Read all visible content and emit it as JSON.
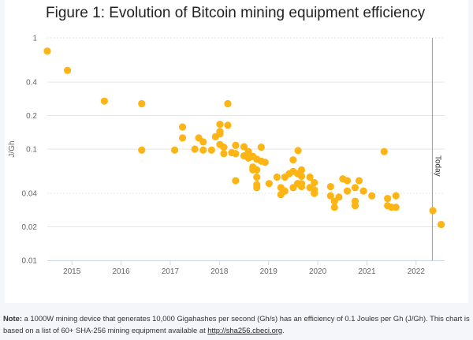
{
  "title": "Figure 1: Evolution of Bitcoin mining equipment efficiency",
  "note": {
    "label": "Note:",
    "text": " a 1000W mining device that generates 10,000 Gigahashes per second (Gh/s) has an efficiency of 0.1 Joules per Gh (J/Gh). This chart is based on a list of 60+ SHA-256 mining equipment available at ",
    "link": "http://sha256.cbeci.org",
    "end": "."
  },
  "chart_data": {
    "type": "scatter",
    "title": "Figure 1: Evolution of Bitcoin mining equipment efficiency",
    "xlabel": "",
    "ylabel": "J/Gh",
    "yscale": "log",
    "ylim": [
      0.01,
      1
    ],
    "xlim": [
      2014.5,
      2022.58
    ],
    "yticks": [
      "1",
      "0.4",
      "0.2",
      "0.1",
      "0.04",
      "0.02",
      "0.01"
    ],
    "ytick_values": [
      1,
      0.4,
      0.2,
      0.1,
      0.04,
      0.02,
      0.01
    ],
    "xticks": [
      "2015",
      "2016",
      "2017",
      "2018",
      "2019",
      "2020",
      "2021",
      "2022"
    ],
    "grid": true,
    "marker_color": "#FDB515",
    "annotation": {
      "label": "Today",
      "x": 2022.33
    },
    "points": [
      [
        2014.5,
        0.76
      ],
      [
        2014.91,
        0.51
      ],
      [
        2015.66,
        0.27
      ],
      [
        2016.42,
        0.256
      ],
      [
        2016.42,
        0.098
      ],
      [
        2017.09,
        0.098
      ],
      [
        2017.25,
        0.158
      ],
      [
        2017.25,
        0.126
      ],
      [
        2017.5,
        0.1
      ],
      [
        2017.58,
        0.126
      ],
      [
        2017.67,
        0.116
      ],
      [
        2017.67,
        0.098
      ],
      [
        2017.84,
        0.098
      ],
      [
        2017.92,
        0.129
      ],
      [
        2018.01,
        0.167
      ],
      [
        2018.01,
        0.144
      ],
      [
        2018.01,
        0.137
      ],
      [
        2018.01,
        0.11
      ],
      [
        2018.09,
        0.104
      ],
      [
        2018.09,
        0.091
      ],
      [
        2018.17,
        0.256
      ],
      [
        2018.17,
        0.164
      ],
      [
        2018.25,
        0.093
      ],
      [
        2018.33,
        0.108
      ],
      [
        2018.33,
        0.091
      ],
      [
        2018.33,
        0.052
      ],
      [
        2018.5,
        0.105
      ],
      [
        2018.5,
        0.087
      ],
      [
        2018.59,
        0.095
      ],
      [
        2018.59,
        0.083
      ],
      [
        2018.68,
        0.086
      ],
      [
        2018.68,
        0.069
      ],
      [
        2018.68,
        0.065
      ],
      [
        2018.76,
        0.081
      ],
      [
        2018.76,
        0.065
      ],
      [
        2018.76,
        0.056
      ],
      [
        2018.76,
        0.048
      ],
      [
        2018.76,
        0.045
      ],
      [
        2018.85,
        0.104
      ],
      [
        2018.85,
        0.078
      ],
      [
        2018.93,
        0.076
      ],
      [
        2019.01,
        0.049
      ],
      [
        2019.17,
        0.056
      ],
      [
        2019.25,
        0.045
      ],
      [
        2019.25,
        0.039
      ],
      [
        2019.33,
        0.056
      ],
      [
        2019.33,
        0.042
      ],
      [
        2019.42,
        0.06
      ],
      [
        2019.5,
        0.08
      ],
      [
        2019.5,
        0.063
      ],
      [
        2019.5,
        0.045
      ],
      [
        2019.59,
        0.06
      ],
      [
        2019.59,
        0.049
      ],
      [
        2019.6,
        0.097
      ],
      [
        2019.67,
        0.065
      ],
      [
        2019.67,
        0.057
      ],
      [
        2019.67,
        0.049
      ],
      [
        2019.67,
        0.046
      ],
      [
        2019.84,
        0.056
      ],
      [
        2019.84,
        0.045
      ],
      [
        2019.93,
        0.05
      ],
      [
        2019.93,
        0.043
      ],
      [
        2019.93,
        0.04
      ],
      [
        2020.26,
        0.046
      ],
      [
        2020.26,
        0.038
      ],
      [
        2020.34,
        0.034
      ],
      [
        2020.34,
        0.03
      ],
      [
        2020.43,
        0.037
      ],
      [
        2020.51,
        0.054
      ],
      [
        2020.6,
        0.052
      ],
      [
        2020.6,
        0.042
      ],
      [
        2020.76,
        0.045
      ],
      [
        2020.76,
        0.034
      ],
      [
        2020.76,
        0.031
      ],
      [
        2020.84,
        0.052
      ],
      [
        2020.93,
        0.042
      ],
      [
        2021.1,
        0.038
      ],
      [
        2021.35,
        0.095
      ],
      [
        2021.42,
        0.036
      ],
      [
        2021.42,
        0.031
      ],
      [
        2021.5,
        0.03
      ],
      [
        2021.59,
        0.03
      ],
      [
        2021.59,
        0.038
      ],
      [
        2022.34,
        0.028
      ],
      [
        2022.51,
        0.021
      ]
    ]
  }
}
